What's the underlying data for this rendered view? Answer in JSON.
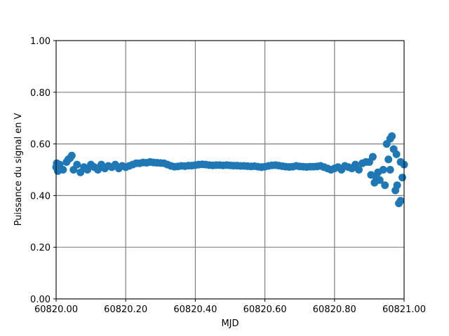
{
  "chart_data": {
    "type": "scatter",
    "x_label": "MJD",
    "y_label": "Puissance du signal en V",
    "xlim": [
      60820.0,
      60821.0
    ],
    "ylim": [
      0.0,
      1.0
    ],
    "xticks": [
      {
        "value": 60820.0,
        "label": "60820.00"
      },
      {
        "value": 60820.2,
        "label": "60820.20"
      },
      {
        "value": 60820.4,
        "label": "60820.40"
      },
      {
        "value": 60820.6,
        "label": "60820.60"
      },
      {
        "value": 60820.8,
        "label": "60820.80"
      },
      {
        "value": 60821.0,
        "label": "60821.00"
      }
    ],
    "yticks": [
      {
        "value": 0.0,
        "label": "0.00"
      },
      {
        "value": 0.2,
        "label": "0.20"
      },
      {
        "value": 0.4,
        "label": "0.40"
      },
      {
        "value": 0.6,
        "label": "0.60"
      },
      {
        "value": 0.8,
        "label": "0.80"
      },
      {
        "value": 1.0,
        "label": "1.00"
      }
    ],
    "grid": true,
    "series": [
      {
        "color": "#1f77b4",
        "x": [
          60820.0,
          60820.01,
          60820.02,
          60820.03,
          60820.04,
          60820.05,
          60820.06,
          60820.07,
          60820.08,
          60820.09,
          60820.1,
          60820.11,
          60820.12,
          60820.13,
          60820.14,
          60820.15,
          60820.16,
          60820.17,
          60820.18,
          60820.19,
          60820.2,
          60820.21,
          60820.22,
          60820.23,
          60820.24,
          60820.25,
          60820.26,
          60820.27,
          60820.28,
          60820.29,
          60820.3,
          60820.31,
          60820.32,
          60820.33,
          60820.34,
          60820.35,
          60820.36,
          60820.37,
          60820.38,
          60820.39,
          60820.4,
          60820.41,
          60820.42,
          60820.43,
          60820.44,
          60820.45,
          60820.46,
          60820.47,
          60820.48,
          60820.49,
          60820.5,
          60820.51,
          60820.52,
          60820.53,
          60820.54,
          60820.55,
          60820.56,
          60820.57,
          60820.58,
          60820.59,
          60820.6,
          60820.61,
          60820.62,
          60820.63,
          60820.64,
          60820.65,
          60820.66,
          60820.67,
          60820.68,
          60820.69,
          60820.7,
          60820.71,
          60820.72,
          60820.73,
          60820.74,
          60820.75,
          60820.76,
          60820.77,
          60820.78,
          60820.79,
          60820.8,
          60820.81,
          60820.82,
          60820.83,
          60820.84,
          60820.85,
          60820.86,
          60820.87,
          60820.88,
          60820.89,
          60820.9,
          60820.91,
          60820.92,
          60820.93,
          60820.94,
          60820.95,
          60820.96,
          60820.97,
          60820.98,
          60820.99,
          60821.0,
          60820.045,
          60820.035,
          60820.905,
          60820.915,
          60820.925,
          60820.955,
          60820.965,
          60820.975,
          60820.985,
          60820.978,
          60820.995,
          60820.945,
          60820.96,
          60820.99,
          60820.002,
          60820.005
        ],
        "values": [
          0.51,
          0.52,
          0.5,
          0.53,
          0.545,
          0.5,
          0.52,
          0.49,
          0.51,
          0.5,
          0.52,
          0.51,
          0.5,
          0.52,
          0.505,
          0.515,
          0.51,
          0.52,
          0.505,
          0.515,
          0.51,
          0.515,
          0.52,
          0.525,
          0.525,
          0.528,
          0.527,
          0.53,
          0.528,
          0.527,
          0.526,
          0.525,
          0.52,
          0.515,
          0.512,
          0.513,
          0.515,
          0.514,
          0.516,
          0.516,
          0.518,
          0.52,
          0.521,
          0.52,
          0.518,
          0.517,
          0.518,
          0.518,
          0.517,
          0.518,
          0.517,
          0.516,
          0.516,
          0.515,
          0.515,
          0.514,
          0.513,
          0.514,
          0.512,
          0.51,
          0.512,
          0.515,
          0.517,
          0.518,
          0.516,
          0.514,
          0.512,
          0.511,
          0.512,
          0.515,
          0.513,
          0.512,
          0.511,
          0.512,
          0.512,
          0.513,
          0.515,
          0.51,
          0.505,
          0.5,
          0.505,
          0.51,
          0.5,
          0.515,
          0.51,
          0.505,
          0.52,
          0.5,
          0.525,
          0.53,
          0.53,
          0.55,
          0.47,
          0.46,
          0.5,
          0.6,
          0.62,
          0.58,
          0.44,
          0.38,
          0.52,
          0.555,
          0.54,
          0.48,
          0.45,
          0.49,
          0.54,
          0.63,
          0.42,
          0.37,
          0.56,
          0.47,
          0.44,
          0.5,
          0.53,
          0.525,
          0.495
        ]
      }
    ]
  }
}
